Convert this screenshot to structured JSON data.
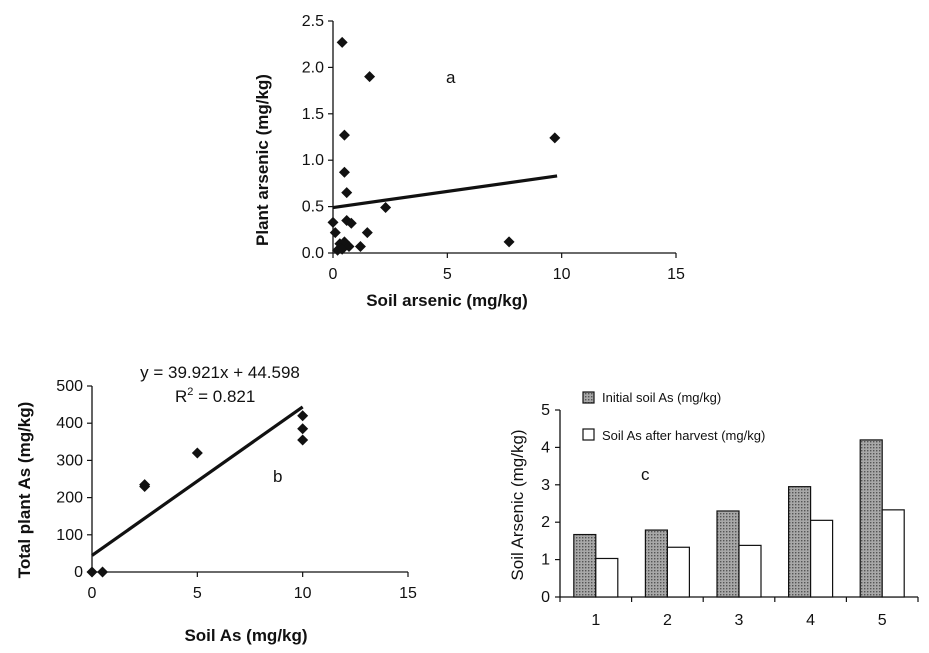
{
  "chart_data": [
    {
      "panel": "a",
      "type": "scatter",
      "xlabel": "Soil arsenic (mg/kg)",
      "ylabel": "Plant arsenic (mg/kg)",
      "xlim": [
        0,
        15
      ],
      "ylim": [
        0,
        2.5
      ],
      "xticks": [
        "0",
        "5",
        "10",
        "15"
      ],
      "yticks": [
        "0.0",
        "0.5",
        "1.0",
        "1.5",
        "2.0",
        "2.5"
      ],
      "points": [
        {
          "x": 0.4,
          "y": 2.27
        },
        {
          "x": 1.6,
          "y": 1.9
        },
        {
          "x": 0.5,
          "y": 1.27
        },
        {
          "x": 0.5,
          "y": 0.87
        },
        {
          "x": 0.6,
          "y": 0.65
        },
        {
          "x": 9.7,
          "y": 1.24
        },
        {
          "x": 2.3,
          "y": 0.49
        },
        {
          "x": 0.0,
          "y": 0.33
        },
        {
          "x": 0.1,
          "y": 0.22
        },
        {
          "x": 0.6,
          "y": 0.35
        },
        {
          "x": 0.8,
          "y": 0.32
        },
        {
          "x": 1.5,
          "y": 0.22
        },
        {
          "x": 0.3,
          "y": 0.1
        },
        {
          "x": 0.5,
          "y": 0.12
        },
        {
          "x": 0.7,
          "y": 0.07
        },
        {
          "x": 0.2,
          "y": 0.03
        },
        {
          "x": 0.4,
          "y": 0.04
        },
        {
          "x": 1.2,
          "y": 0.07
        },
        {
          "x": 7.7,
          "y": 0.12
        }
      ],
      "trendline": {
        "x": [
          0,
          9.8
        ],
        "y": [
          0.49,
          0.83
        ]
      },
      "annotation": "a"
    },
    {
      "panel": "b",
      "type": "scatter",
      "xlabel": "Soil As (mg/kg)",
      "ylabel": "Total plant As (mg/kg)",
      "xlim": [
        0,
        15
      ],
      "ylim": [
        0,
        500
      ],
      "xticks": [
        "0",
        "5",
        "10",
        "15"
      ],
      "yticks": [
        "0",
        "100",
        "200",
        "300",
        "400",
        "500"
      ],
      "points": [
        {
          "x": 0,
          "y": 0
        },
        {
          "x": 0.5,
          "y": 0
        },
        {
          "x": 2.5,
          "y": 230
        },
        {
          "x": 2.5,
          "y": 235
        },
        {
          "x": 5,
          "y": 320
        },
        {
          "x": 10,
          "y": 420
        },
        {
          "x": 10,
          "y": 385
        },
        {
          "x": 10,
          "y": 355
        }
      ],
      "trendline": {
        "x": [
          0,
          10
        ],
        "y": [
          44.598,
          443.808
        ]
      },
      "equation": "y = 39.921x + 44.598",
      "r2_prefix": "R",
      "r2_sup": "2",
      "r2_value": " = 0.821",
      "annotation": "b"
    },
    {
      "panel": "c",
      "type": "bar",
      "ylabel": "Soil Arsenic (mg/kg)",
      "ylim": [
        0,
        5
      ],
      "yticks": [
        "0",
        "1",
        "2",
        "3",
        "4",
        "5"
      ],
      "categories": [
        "1",
        "2",
        "3",
        "4",
        "5"
      ],
      "series": [
        {
          "name": "Initial soil As (mg/kg)",
          "values": [
            1.67,
            1.79,
            2.3,
            2.95,
            4.2
          ],
          "color": "#9a9a9a"
        },
        {
          "name": "Soil As after harvest (mg/kg)",
          "values": [
            1.03,
            1.33,
            1.38,
            2.05,
            2.33
          ],
          "color": "#ffffff"
        }
      ],
      "annotation": "c"
    }
  ],
  "colors": {
    "ink": "#111111",
    "bar_fill": "#9a9a9a"
  }
}
